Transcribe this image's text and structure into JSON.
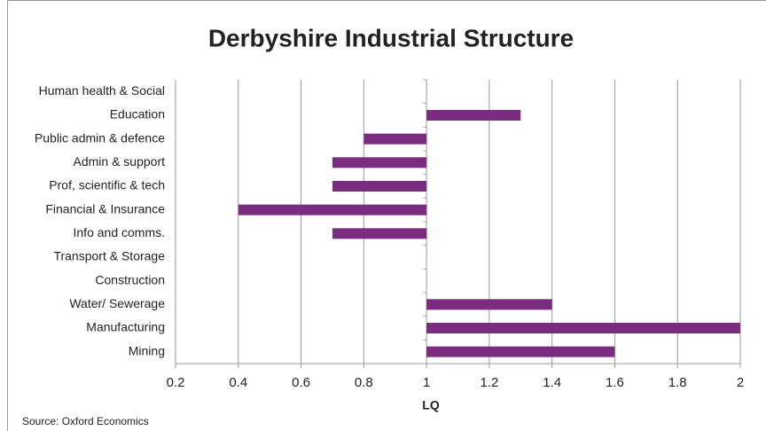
{
  "chart_data": {
    "type": "hbar",
    "title": "Derbyshire Industrial Structure",
    "categories": [
      "Human health & Social",
      "Education",
      "Public admin & defence",
      "Admin & support",
      "Prof, scientific & tech",
      "Financial & Insurance",
      "Info and comms.",
      "Transport & Storage",
      "Construction",
      "Water/ Sewerage",
      "Manufacturing",
      "Mining"
    ],
    "values": [
      1,
      1.3,
      0.8,
      0.7,
      0.7,
      0.4,
      0.7,
      1,
      1,
      1.4,
      2,
      1.6
    ],
    "baseline": 1,
    "color": "#7b2c7e",
    "xlim": [
      0.2,
      2
    ],
    "xticks": [
      0.2,
      0.4,
      0.6,
      0.8,
      1,
      1.2,
      1.4,
      1.6,
      1.8,
      2
    ],
    "xlabel": "LQ",
    "grid": true,
    "source": "Source: Oxford Economics"
  }
}
